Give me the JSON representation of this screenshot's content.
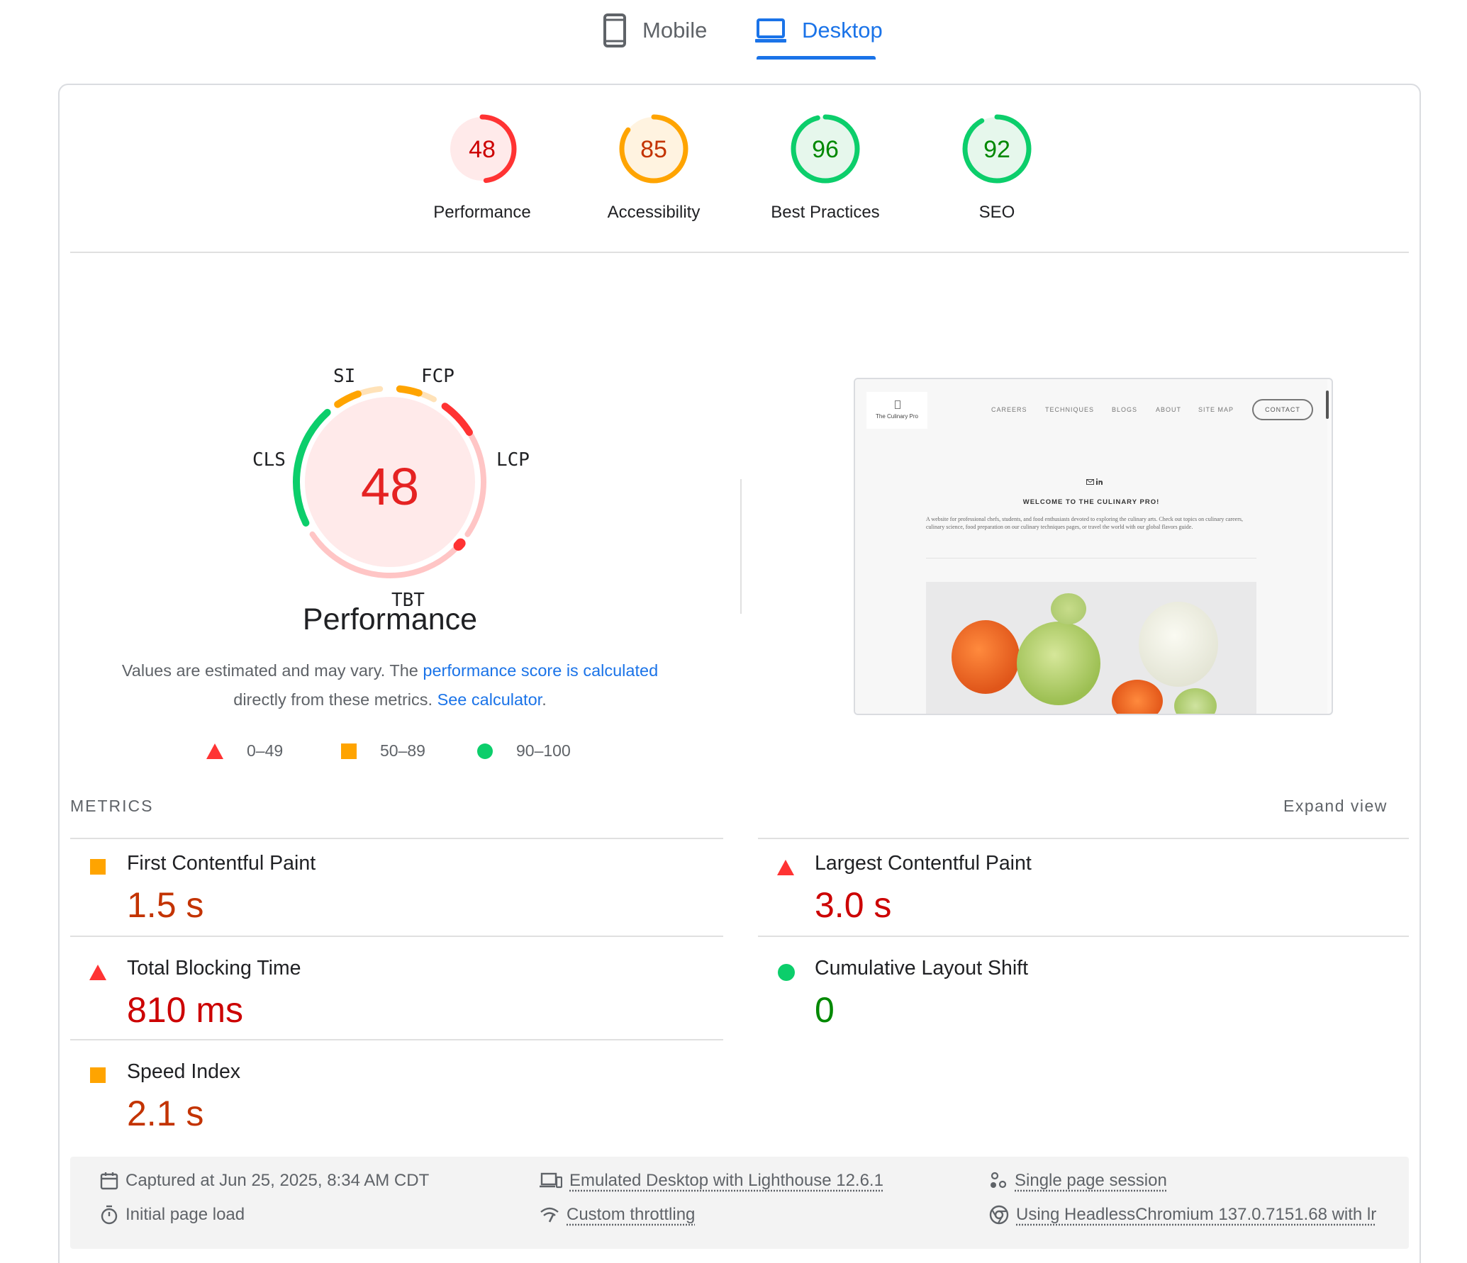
{
  "tabs": {
    "mobile": "Mobile",
    "desktop": "Desktop",
    "active": "desktop"
  },
  "colors": {
    "fail": "#ff3333",
    "average": "#ffa400",
    "pass": "#0cce6b",
    "link": "#1a73e8"
  },
  "scores": [
    {
      "label": "Performance",
      "value": "48",
      "score": 48,
      "rating": "fail"
    },
    {
      "label": "Accessibility",
      "value": "85",
      "score": 85,
      "rating": "average"
    },
    {
      "label": "Best Practices",
      "value": "96",
      "score": 96,
      "rating": "pass"
    },
    {
      "label": "SEO",
      "value": "92",
      "score": 92,
      "rating": "pass"
    }
  ],
  "performance": {
    "score": "48",
    "title": "Performance",
    "abbr": {
      "si": "SI",
      "fcp": "FCP",
      "lcp": "LCP",
      "tbt": "TBT",
      "cls": "CLS"
    },
    "desc_pre": "Values are estimated and may vary. The ",
    "desc_link1": "performance score is calculated",
    "desc_mid": " directly from these metrics. ",
    "desc_link2": "See calculator",
    "desc_post": "."
  },
  "legend": {
    "fail": "0–49",
    "average": "50–89",
    "pass": "90–100"
  },
  "thumbnail": {
    "logo_text": "The Culinary Pro",
    "nav": [
      "CAREERS",
      "TECHNIQUES",
      "BLOGS",
      "ABOUT",
      "SITE MAP"
    ],
    "contact": "CONTACT",
    "heading": "WELCOME TO THE CULINARY PRO!",
    "paragraph": "A website for professional chefs, students, and food enthusiasts devoted to exploring the culinary arts. Check out topics on culinary careers, culinary science, food preparation on our culinary techniques pages, or travel the world with our global flavors guide."
  },
  "metrics": {
    "title": "METRICS",
    "expand": "Expand view",
    "items": [
      {
        "name": "First Contentful Paint",
        "value": "1.5 s",
        "rating": "average"
      },
      {
        "name": "Largest Contentful Paint",
        "value": "3.0 s",
        "rating": "fail"
      },
      {
        "name": "Total Blocking Time",
        "value": "810 ms",
        "rating": "fail"
      },
      {
        "name": "Cumulative Layout Shift",
        "value": "0",
        "rating": "pass"
      },
      {
        "name": "Speed Index",
        "value": "2.1 s",
        "rating": "average"
      }
    ]
  },
  "footer": {
    "captured": "Captured at Jun 25, 2025, 8:34 AM CDT",
    "initial_load": "Initial page load",
    "emulated": "Emulated Desktop with Lighthouse 12.6.1",
    "throttling": "Custom throttling",
    "session": "Single page session",
    "browser": "Using HeadlessChromium 137.0.7151.68 with lr"
  }
}
